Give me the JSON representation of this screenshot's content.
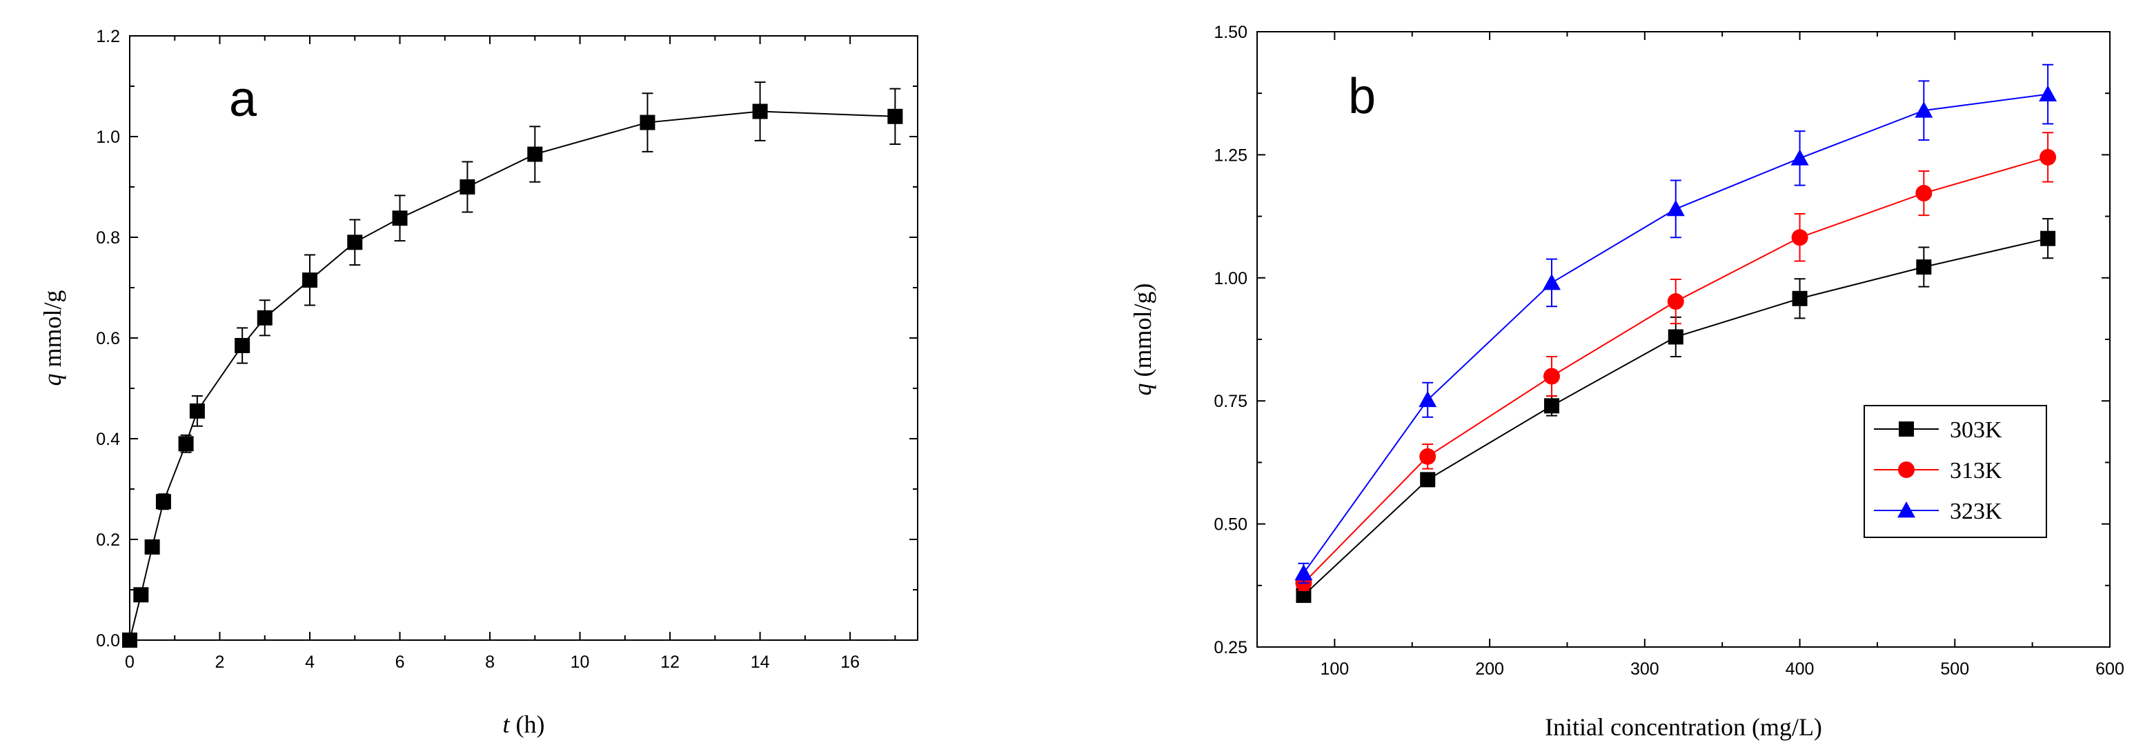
{
  "chart_data": [
    {
      "panel_label": "a",
      "type": "line",
      "xlabel_italic": "t",
      "xlabel_rest": " (h)",
      "ylabel_italic": "q",
      "ylabel_rest": " mmol/g",
      "xlim": [
        0,
        17.5
      ],
      "ylim": [
        0,
        1.2
      ],
      "xticks": [
        0,
        2,
        4,
        6,
        8,
        10,
        12,
        14,
        16
      ],
      "yticks": [
        0.0,
        0.2,
        0.4,
        0.6,
        0.8,
        1.0,
        1.2
      ],
      "ytick_decimals": 1,
      "grid": false,
      "series": [
        {
          "name": "q",
          "color": "#000000",
          "marker": "square",
          "x": [
            0,
            0.25,
            0.5,
            0.75,
            1.25,
            1.5,
            2.5,
            3,
            4,
            5,
            6,
            7.5,
            9,
            11.5,
            14,
            17
          ],
          "y": [
            0.0,
            0.09,
            0.185,
            0.275,
            0.39,
            0.455,
            0.585,
            0.64,
            0.715,
            0.79,
            0.838,
            0.9,
            0.965,
            1.028,
            1.05,
            1.04
          ],
          "err": [
            0,
            0,
            0,
            0.015,
            0.017,
            0.03,
            0.035,
            0.035,
            0.05,
            0.045,
            0.045,
            0.05,
            0.055,
            0.058,
            0.058,
            0.055
          ]
        }
      ]
    },
    {
      "panel_label": "b",
      "type": "line",
      "xlabel": "Initial concentration (mg/L)",
      "ylabel_italic": "q",
      "ylabel_rest": " (mmol/g)",
      "xlim": [
        50,
        600
      ],
      "ylim": [
        0.25,
        1.5
      ],
      "xticks": [
        100,
        200,
        300,
        400,
        500,
        600
      ],
      "yticks": [
        0.25,
        0.5,
        0.75,
        1.0,
        1.25,
        1.5
      ],
      "ytick_decimals": 2,
      "grid": false,
      "legend_position": "lower-right",
      "series": [
        {
          "name": "303K",
          "color": "#000000",
          "marker": "square",
          "x": [
            80,
            160,
            240,
            320,
            400,
            480,
            560
          ],
          "y": [
            0.355,
            0.59,
            0.74,
            0.88,
            0.958,
            1.022,
            1.08
          ],
          "err": [
            0.01,
            0.01,
            0.02,
            0.04,
            0.04,
            0.04,
            0.04
          ]
        },
        {
          "name": "313K",
          "color": "#ff0000",
          "marker": "circle",
          "x": [
            80,
            160,
            240,
            320,
            400,
            480,
            560
          ],
          "y": [
            0.38,
            0.637,
            0.8,
            0.952,
            1.082,
            1.172,
            1.245
          ],
          "err": [
            0.015,
            0.025,
            0.04,
            0.045,
            0.048,
            0.045,
            0.05
          ]
        },
        {
          "name": "323K",
          "color": "#0000ff",
          "marker": "triangle",
          "x": [
            80,
            160,
            240,
            320,
            400,
            480,
            560
          ],
          "y": [
            0.4,
            0.752,
            0.99,
            1.14,
            1.243,
            1.34,
            1.373
          ],
          "err": [
            0.02,
            0.035,
            0.048,
            0.058,
            0.055,
            0.06,
            0.06
          ]
        }
      ]
    }
  ]
}
